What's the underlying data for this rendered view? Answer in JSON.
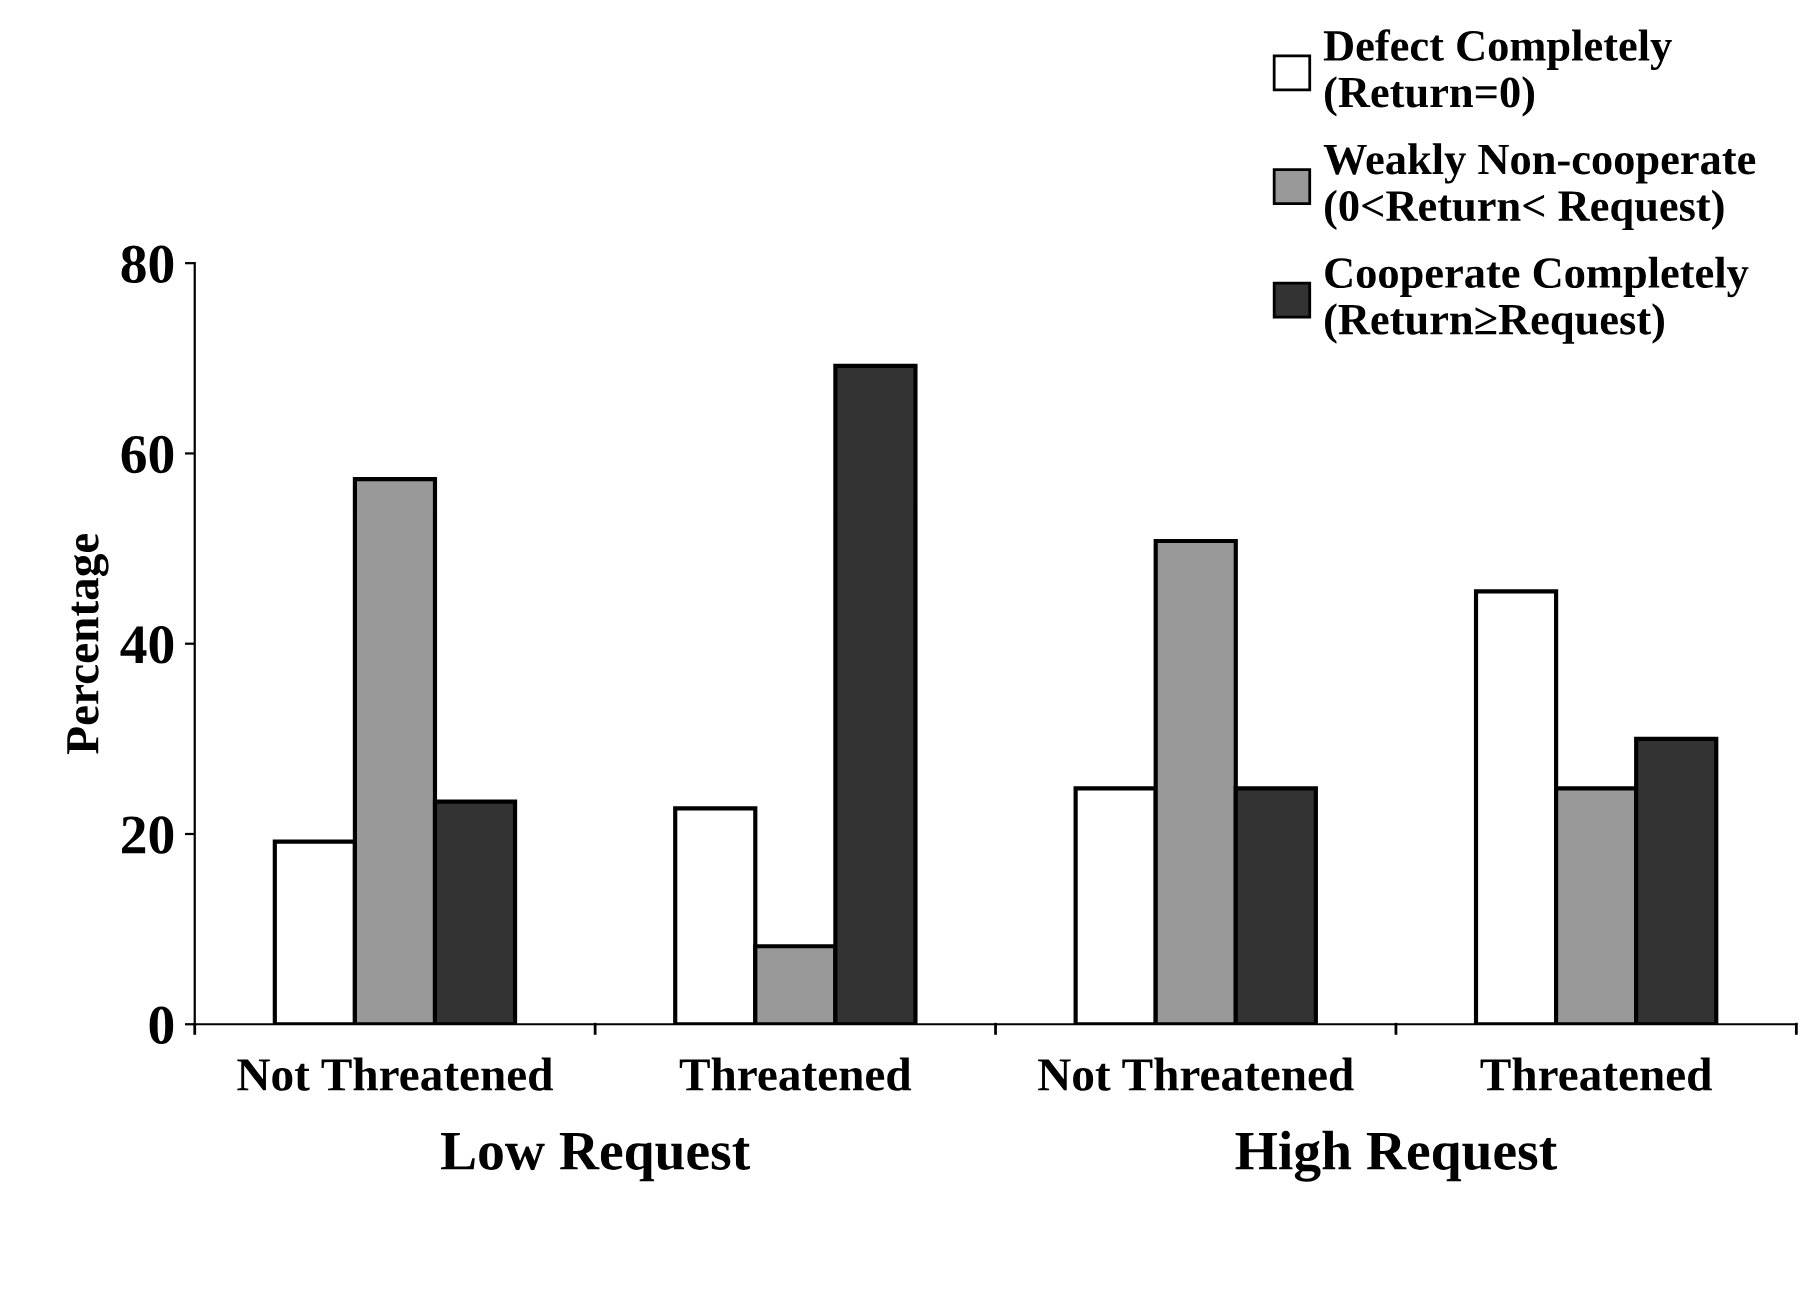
{
  "chart_data": {
    "type": "bar",
    "ylabel": "Percentage",
    "categories": [
      "Not Threatened",
      "Threatened",
      "Not Threatened",
      "Threatened"
    ],
    "series": [
      {
        "name": "Defect Completely\n(Return=0)",
        "color": "#ffffff",
        "values": [
          19.2,
          22.7,
          24.8,
          45.5
        ]
      },
      {
        "name": "Weakly Non-cooperate\n(0<Return< Request)",
        "color": "#999999",
        "values": [
          57.3,
          8.2,
          50.8,
          24.8
        ]
      },
      {
        "name": "Cooperate Completely\n(Return≥Request)",
        "color": "#333333",
        "values": [
          23.4,
          69.2,
          24.8,
          30.0
        ]
      }
    ],
    "annotations": [
      "Low Request",
      "High Request"
    ],
    "ylim": [
      0,
      80
    ],
    "yticks": [
      0,
      20,
      40,
      60,
      80
    ],
    "grid": false,
    "legend": "top right"
  }
}
